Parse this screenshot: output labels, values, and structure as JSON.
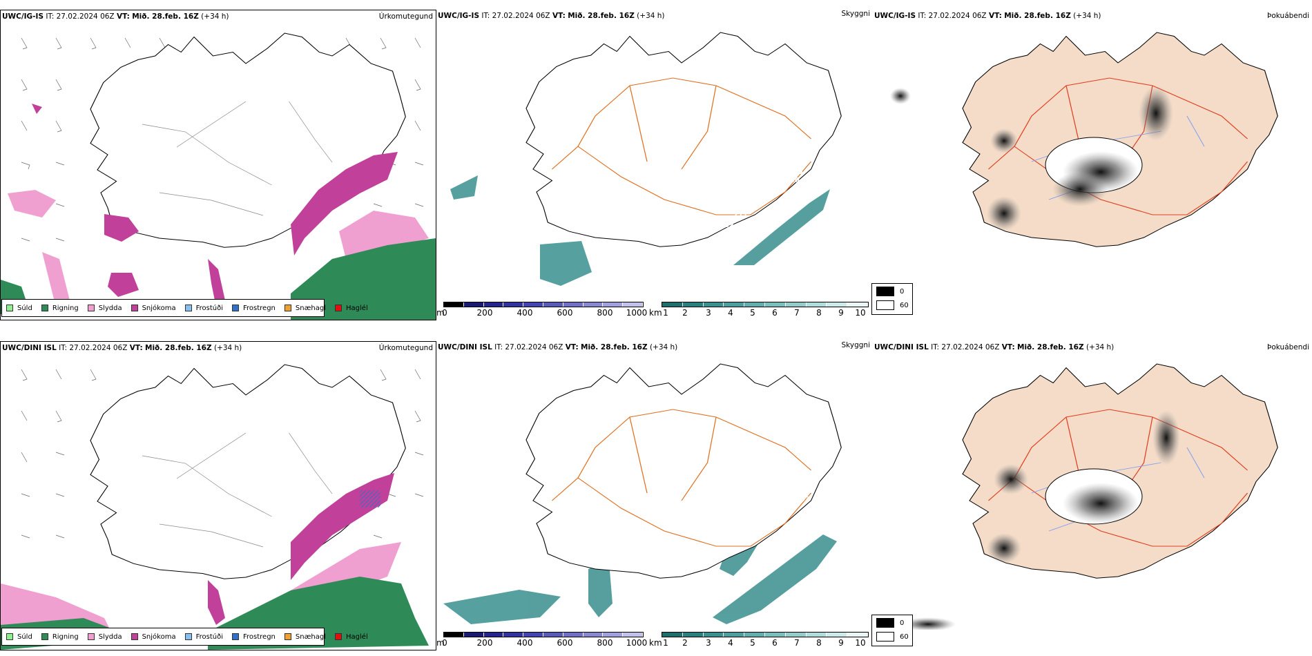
{
  "rows": [
    {
      "model": "UWC/IG-IS",
      "it_label": "IT:",
      "it_value": "27.02.2024 06Z",
      "vt_label": "VT:",
      "vt_value": "Mið. 28.feb. 16Z",
      "lead": "(+34 h)",
      "labels_vis": [
        "271",
        "386",
        "562",
        "206",
        "205",
        "330",
        "835",
        "687",
        "657",
        "977"
      ]
    },
    {
      "model": "UWC/DINI ISL",
      "it_label": "IT:",
      "it_value": "27.02.2024 06Z",
      "vt_label": "VT:",
      "vt_value": "Mið. 28.feb. 16Z",
      "lead": "(+34 h)",
      "labels_vis": [
        "118",
        "236",
        "553",
        "308",
        "387",
        "210",
        "256",
        "353",
        "179",
        "376",
        "327"
      ]
    }
  ],
  "panel_titles": {
    "precip_type": "Úrkomutegund",
    "visibility": "Skyggni",
    "fog": "Þokuábendi"
  },
  "precip_legend": [
    {
      "label": "Súld",
      "color": "#90ee90"
    },
    {
      "label": "Rigning",
      "color": "#2e8b57"
    },
    {
      "label": "Slydda",
      "color": "#f0a0d0"
    },
    {
      "label": "Snjókoma",
      "color": "#c0409a"
    },
    {
      "label": "Frostúði",
      "color": "#87c0f0"
    },
    {
      "label": "Frostregn",
      "color": "#3070c8"
    },
    {
      "label": "Snæhagl",
      "color": "#f0a030"
    },
    {
      "label": "Haglél",
      "color": "#e01010"
    }
  ],
  "visibility_m": {
    "unit": "m",
    "ticks": [
      "0",
      "200",
      "400",
      "600",
      "800",
      "1000"
    ],
    "colors": [
      "#000000",
      "#1a1a70",
      "#25258c",
      "#3333a0",
      "#4545b0",
      "#5a5ab8",
      "#7070c4",
      "#8888d0",
      "#a0a0dc",
      "#c0c0ea"
    ]
  },
  "visibility_km": {
    "unit": "km",
    "ticks": [
      "1",
      "2",
      "3",
      "4",
      "5",
      "6",
      "7",
      "8",
      "9",
      "10"
    ],
    "colors": [
      "#1f6e6e",
      "#2a7f7f",
      "#3a8f8f",
      "#4d9e9e",
      "#62aeae",
      "#7abebe",
      "#94cccc",
      "#b0dcdc",
      "#cdeaea",
      "#e8f6f6"
    ]
  },
  "fog_legend": [
    {
      "label": "0",
      "color": "#000000"
    },
    {
      "label": "60",
      "color": "#ffffff"
    }
  ],
  "colors": {
    "land_fog": "#f4dcc8",
    "roads": "#e07020",
    "rivers": "#7fa0f0"
  }
}
